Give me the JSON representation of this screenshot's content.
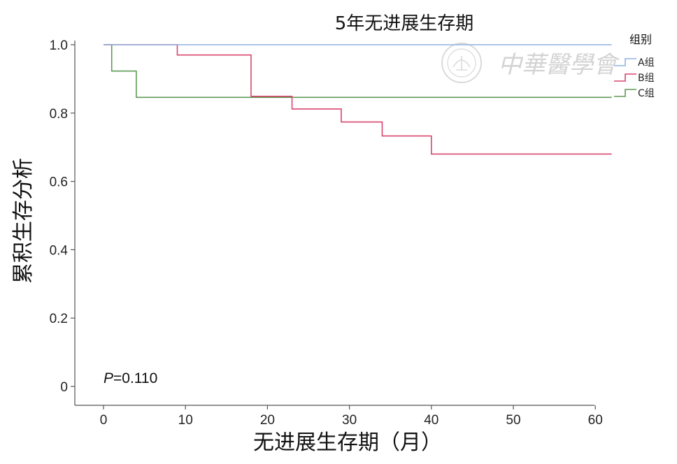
{
  "chart_data": {
    "type": "line",
    "title": "5年无进展生存期",
    "xlabel": "无进展生存期（月）",
    "ylabel": "累积生存分析",
    "xlim": [
      0,
      62
    ],
    "ylim": [
      0,
      1.0
    ],
    "x_ticks": [
      0,
      10,
      20,
      30,
      40,
      50,
      60
    ],
    "y_ticks": [
      0,
      0.2,
      0.4,
      0.6,
      0.8,
      1.0
    ],
    "x_tick_labels": [
      "0",
      "10",
      "20",
      "30",
      "40",
      "50",
      "60"
    ],
    "y_tick_labels": [
      "0",
      "0.2",
      "0.4",
      "0.6",
      "0.8",
      "1.0"
    ],
    "grid": false,
    "legend": {
      "title": "组别",
      "placement": "top-right"
    },
    "series": [
      {
        "name": "A组",
        "color": "#8fb3e0",
        "step": true,
        "points": [
          [
            0,
            1.0
          ],
          [
            62,
            1.0
          ]
        ]
      },
      {
        "name": "B组",
        "color": "#d9466e",
        "step": true,
        "points": [
          [
            0,
            1.0
          ],
          [
            9,
            0.97
          ],
          [
            18,
            0.849
          ],
          [
            23,
            0.812
          ],
          [
            29,
            0.774
          ],
          [
            34,
            0.733
          ],
          [
            40,
            0.68
          ],
          [
            62,
            0.68
          ]
        ]
      },
      {
        "name": "C组",
        "color": "#5e9a55",
        "step": true,
        "points": [
          [
            0,
            1.0
          ],
          [
            1,
            0.923
          ],
          [
            4,
            0.846
          ],
          [
            62,
            0.846
          ]
        ]
      }
    ],
    "annotations": [
      {
        "prefix": "P",
        "text": "=0.110",
        "x": 0,
        "y": 0.01
      }
    ]
  },
  "watermark": {
    "text": "中華醫學會",
    "color": "#bdbdbd"
  }
}
